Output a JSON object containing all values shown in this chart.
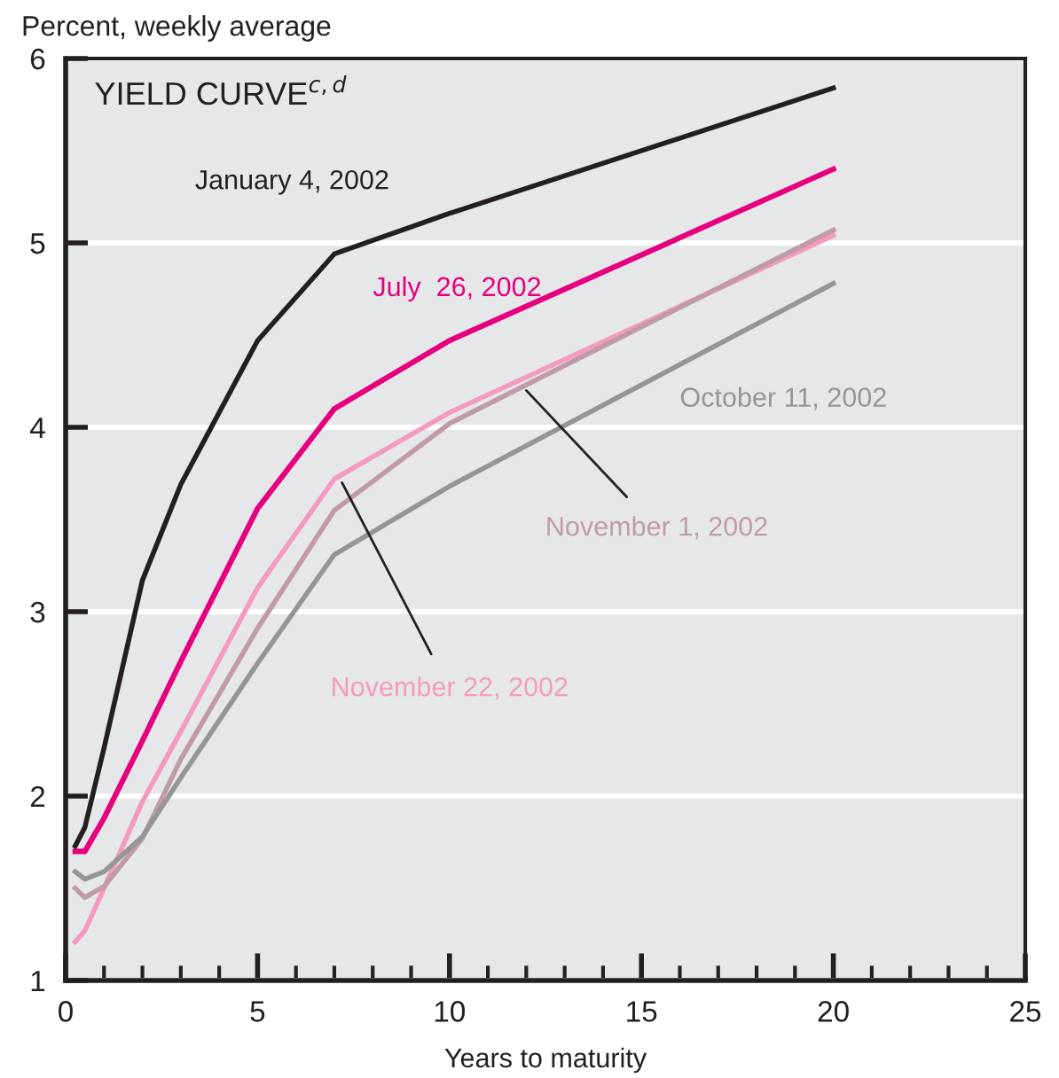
{
  "chart_data": {
    "type": "line",
    "title": "YIELD CURVE$^{c,d}$",
    "xlabel": "Years to maturity",
    "ylabel": "Percent, weekly average",
    "x": [
      0.25,
      0.5,
      1,
      2,
      3,
      5,
      7,
      10,
      20
    ],
    "series": [
      {
        "name": "January 4, 2002",
        "color": "#231f20",
        "values": [
          1.73,
          1.83,
          2.26,
          3.17,
          3.69,
          4.47,
          4.94,
          5.16,
          5.84
        ]
      },
      {
        "name": "July  26, 2002",
        "color": "#e6007e",
        "values": [
          1.7,
          1.7,
          1.88,
          2.3,
          2.73,
          3.56,
          4.1,
          4.47,
          5.4
        ]
      },
      {
        "name": "October 11, 2002",
        "color": "#939598",
        "values": [
          1.59,
          1.55,
          1.59,
          1.78,
          2.1,
          2.72,
          3.31,
          3.68,
          4.78
        ]
      },
      {
        "name": "November 1, 2002",
        "color": "#c09aa8",
        "values": [
          1.5,
          1.45,
          1.51,
          1.77,
          2.2,
          2.91,
          3.55,
          4.02,
          5.07
        ]
      },
      {
        "name": "November 22, 2002",
        "color": "#f49ac1",
        "values": [
          1.21,
          1.27,
          1.5,
          1.97,
          2.35,
          3.13,
          3.72,
          4.08,
          5.04
        ]
      }
    ],
    "xlim": [
      0,
      25
    ],
    "xticks": [
      0,
      5,
      10,
      15,
      20,
      25
    ],
    "ylim": [
      1,
      6
    ],
    "yticks": [
      1,
      2,
      3,
      4,
      5,
      6
    ],
    "grid": "y",
    "marker": "none",
    "line_style": "solid"
  }
}
